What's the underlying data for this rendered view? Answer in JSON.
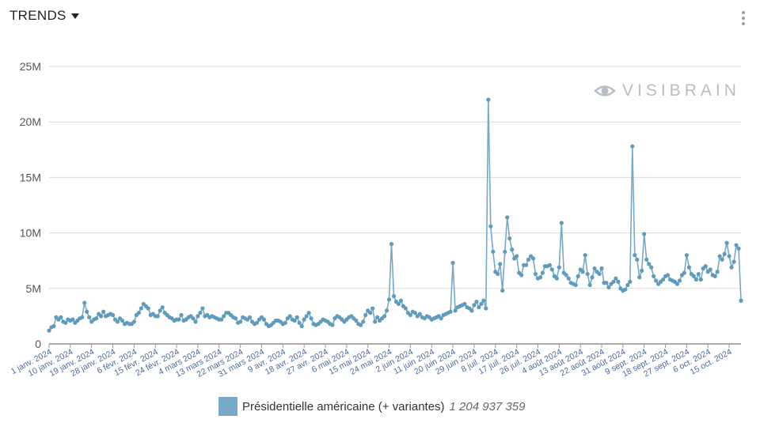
{
  "header": {
    "title": "TRENDS",
    "caret_icon": "caret-down-icon",
    "menu_icon": "kebab-menu-icon"
  },
  "watermark": {
    "icon": "eye-icon",
    "text": "VISIBRAIN"
  },
  "legend": {
    "series_name": "Présidentielle américaine (+ variantes)",
    "total": "1 204 937 359"
  },
  "colors": {
    "series": "#74a9c8",
    "series_point": "#5e9bbd",
    "grid": "#d9d9d9"
  },
  "chart_data": {
    "type": "line",
    "ylim": [
      0,
      25000000
    ],
    "y_ticks": [
      0,
      5000000,
      10000000,
      15000000,
      20000000,
      25000000
    ],
    "y_tick_labels": [
      "0",
      "5M",
      "10M",
      "15M",
      "20M",
      "25M"
    ],
    "x_start": "2024-01-01",
    "x_tick_labels": [
      "1 janv. 2024",
      "10 janv. 2024",
      "19 janv. 2024",
      "28 janv. 2024",
      "6 févr. 2024",
      "15 févr. 2024",
      "24 févr. 2024",
      "4 mars 2024",
      "13 mars 2024",
      "22 mars 2024",
      "31 mars 2024",
      "9 avr. 2024",
      "18 avr. 2024",
      "27 avr. 2024",
      "6 mai 2024",
      "15 mai 2024",
      "24 mai 2024",
      "2 juin 2024",
      "11 juin 2024",
      "20 juin 2024",
      "29 juin 2024",
      "8 juil. 2024",
      "17 juil. 2024",
      "26 juil. 2024",
      "4 août 2024",
      "13 août 2024",
      "22 août 2024",
      "31 août 2024",
      "9 sept. 2024",
      "18 sept. 2024",
      "27 sept. 2024",
      "6 oct. 2024",
      "15 oct. 2024"
    ],
    "series": [
      {
        "name": "Présidentielle américaine (+ variantes)",
        "values": [
          1.2,
          1.5,
          1.6,
          2.4,
          2.2,
          2.4,
          2.0,
          1.9,
          2.2,
          2.1,
          2.2,
          1.9,
          2.1,
          2.3,
          2.4,
          3.7,
          2.9,
          2.4,
          2.0,
          2.2,
          2.3,
          2.7,
          2.5,
          2.9,
          2.5,
          2.6,
          2.7,
          2.6,
          2.2,
          2.0,
          2.3,
          2.1,
          1.8,
          1.9,
          1.8,
          1.8,
          2.0,
          2.6,
          2.8,
          3.2,
          3.6,
          3.4,
          3.2,
          2.6,
          2.7,
          2.5,
          2.5,
          3.0,
          3.3,
          2.8,
          2.6,
          2.4,
          2.3,
          2.1,
          2.2,
          2.2,
          2.6,
          2.1,
          2.2,
          2.4,
          2.5,
          2.3,
          2.0,
          2.5,
          2.8,
          3.2,
          2.5,
          2.6,
          2.4,
          2.5,
          2.4,
          2.3,
          2.2,
          2.2,
          2.5,
          2.8,
          2.8,
          2.6,
          2.4,
          2.3,
          1.9,
          2.0,
          2.4,
          2.3,
          2.2,
          2.4,
          2.0,
          1.8,
          1.9,
          2.2,
          2.4,
          2.2,
          1.8,
          1.6,
          1.7,
          1.9,
          2.1,
          2.1,
          2.0,
          1.8,
          1.9,
          2.3,
          2.5,
          2.2,
          2.1,
          2.4,
          1.9,
          1.6,
          2.2,
          2.5,
          2.8,
          2.3,
          1.8,
          1.7,
          1.8,
          2.0,
          2.2,
          2.1,
          2.0,
          1.8,
          1.7,
          2.3,
          2.5,
          2.4,
          2.2,
          2.0,
          2.2,
          2.4,
          2.5,
          2.3,
          2.1,
          1.8,
          1.7,
          2.0,
          2.6,
          3.0,
          2.8,
          3.2,
          2.0,
          2.4,
          2.1,
          2.3,
          2.5,
          3.0,
          4.0,
          9.0,
          4.3,
          3.8,
          3.6,
          3.9,
          3.4,
          3.2,
          2.8,
          2.6,
          2.9,
          2.8,
          2.5,
          2.7,
          2.4,
          2.3,
          2.5,
          2.4,
          2.2,
          2.3,
          2.4,
          2.5,
          2.3,
          2.6,
          2.7,
          2.8,
          2.9,
          7.3,
          3.0,
          3.3,
          3.4,
          3.5,
          3.6,
          3.3,
          3.2,
          3.0,
          3.5,
          3.8,
          3.3,
          3.6,
          3.9,
          3.2,
          22.0,
          10.6,
          8.3,
          6.5,
          6.3,
          7.2,
          4.8,
          8.3,
          11.4,
          9.5,
          8.5,
          7.7,
          7.9,
          6.4,
          6.2,
          7.1,
          7.1,
          7.6,
          7.9,
          7.7,
          6.3,
          5.9,
          6.0,
          6.4,
          7.0,
          7.0,
          7.1,
          6.7,
          6.1,
          5.9,
          6.9,
          10.9,
          6.4,
          6.2,
          5.9,
          5.5,
          5.4,
          5.3,
          6.1,
          6.7,
          6.5,
          8.0,
          6.3,
          5.3,
          6.0,
          6.8,
          6.5,
          6.3,
          6.8,
          5.5,
          5.5,
          5.1,
          5.4,
          5.6,
          5.9,
          5.6,
          5.0,
          4.8,
          4.9,
          5.3,
          5.6,
          17.8,
          8.0,
          7.6,
          6.0,
          6.6,
          9.9,
          7.6,
          7.2,
          6.9,
          6.1,
          5.7,
          5.4,
          5.6,
          5.8,
          6.1,
          6.2,
          5.8,
          5.7,
          5.6,
          5.4,
          5.7,
          6.2,
          6.4,
          8.0,
          6.9,
          6.3,
          6.1,
          5.8,
          6.3,
          5.8,
          6.8,
          7.0,
          6.5,
          6.7,
          6.2,
          6.1,
          6.5,
          7.9,
          7.6,
          8.1,
          9.1,
          7.9,
          6.9,
          7.4,
          8.9,
          8.6,
          3.9
        ]
      }
    ]
  }
}
